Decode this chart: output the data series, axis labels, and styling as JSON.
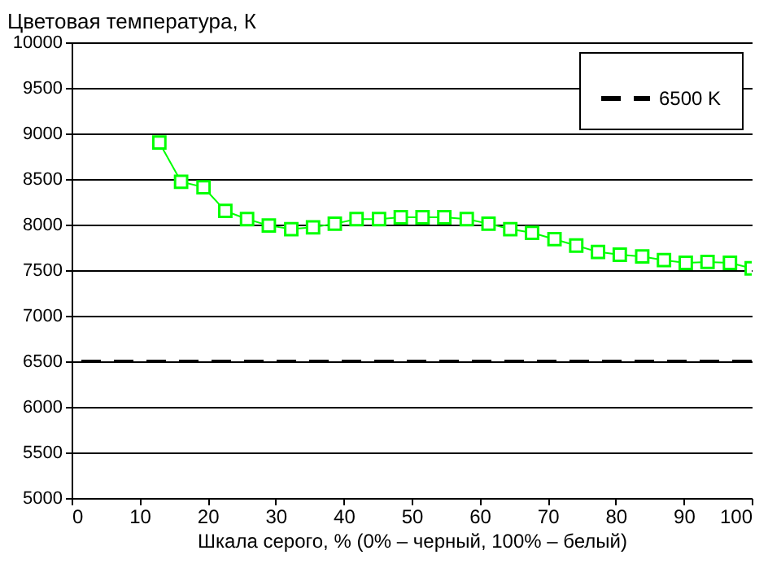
{
  "chart_data": {
    "type": "line",
    "ylabel": "Цветовая температура, К",
    "xlabel": "Шкала серого, % (0% – черный, 100% – белый)",
    "x": [
      12.9,
      16.1,
      19.4,
      22.6,
      25.8,
      29.0,
      32.3,
      35.5,
      38.7,
      41.9,
      45.2,
      48.4,
      51.6,
      54.8,
      58.1,
      61.3,
      64.5,
      67.7,
      71.0,
      74.2,
      77.4,
      80.6,
      83.9,
      87.1,
      90.3,
      93.5,
      96.8,
      100
    ],
    "series": [
      {
        "color": "#00ff00",
        "values": [
          8900,
          8470,
          8410,
          8150,
          8060,
          7990,
          7950,
          7970,
          8010,
          8060,
          8060,
          8080,
          8080,
          8080,
          8060,
          8010,
          7950,
          7910,
          7840,
          7770,
          7700,
          7670,
          7650,
          7610,
          7580,
          7590,
          7580,
          7520
        ]
      }
    ],
    "ref_lines": [
      {
        "axis": "y",
        "value": 6500,
        "label": "6500 K",
        "color": "#000000",
        "line_style": "dashed"
      }
    ],
    "xlim": [
      0,
      100
    ],
    "xticks": [
      0,
      10,
      20,
      30,
      40,
      50,
      60,
      70,
      80,
      90,
      100
    ],
    "ylim": [
      5000,
      10000
    ],
    "yticks": [
      5000,
      5500,
      6000,
      6500,
      7000,
      7500,
      8000,
      8500,
      9000,
      9500,
      10000
    ],
    "grid": "y",
    "legend": "top right",
    "marker": "square",
    "line_style": "solid"
  }
}
